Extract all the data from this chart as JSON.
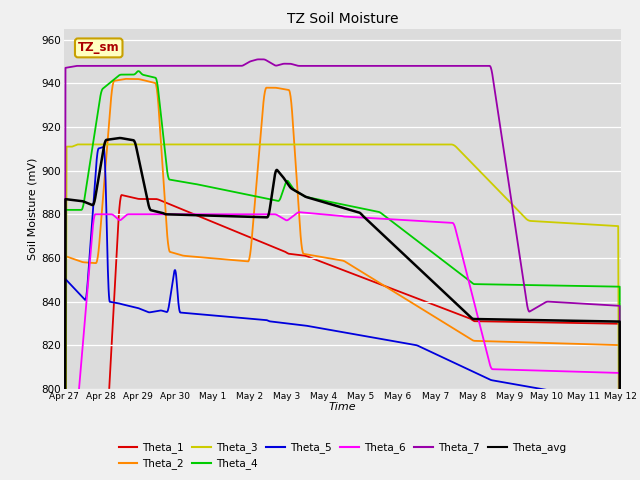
{
  "title": "TZ Soil Moisture",
  "xlabel": "Time",
  "ylabel": "Soil Moisture (mV)",
  "ylim": [
    800,
    965
  ],
  "yticks": [
    800,
    820,
    840,
    860,
    880,
    900,
    920,
    940,
    960
  ],
  "plot_bg_color": "#dcdcdc",
  "fig_bg_color": "#f0f0f0",
  "legend_box_label": "TZ_sm",
  "legend_box_facecolor": "#ffffc0",
  "legend_box_edgecolor": "#c8a000",
  "legend_box_textcolor": "#aa0000",
  "series_colors": {
    "Theta_1": "#dd0000",
    "Theta_2": "#ff8800",
    "Theta_3": "#cccc00",
    "Theta_4": "#00cc00",
    "Theta_5": "#0000dd",
    "Theta_6": "#ff00ff",
    "Theta_7": "#9900aa",
    "Theta_avg": "#000000"
  },
  "x_tick_labels": [
    "Apr 27",
    "Apr 28",
    "Apr 29",
    "Apr 30",
    "May 1",
    "May 2",
    "May 3",
    "May 4",
    "May 5",
    "May 6",
    "May 7",
    "May 8",
    "May 9",
    "May 10",
    "May 11",
    "May 12"
  ],
  "x_tick_positions": [
    0,
    1,
    2,
    3,
    4,
    5,
    6,
    7,
    8,
    9,
    10,
    11,
    12,
    13,
    14,
    15
  ]
}
